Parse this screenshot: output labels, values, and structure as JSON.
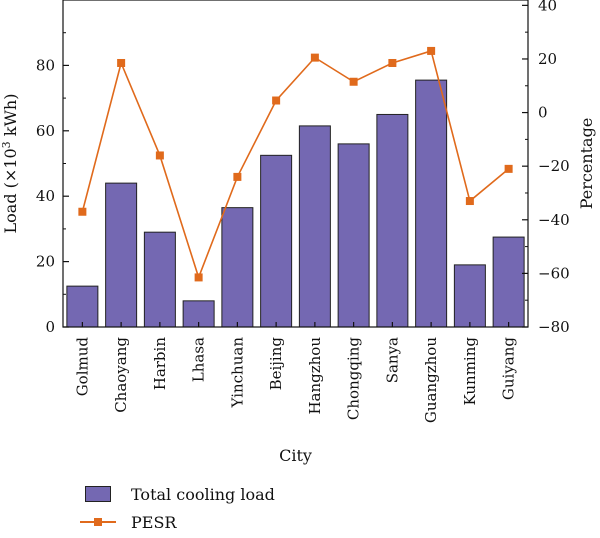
{
  "chart_data": {
    "type": "bar",
    "categories": [
      "Golmud",
      "Chaoyang",
      "Harbin",
      "Lhasa",
      "Yinchuan",
      "Beijing",
      "Hangzhou",
      "Chongqing",
      "Sanya",
      "Guangzhou",
      "Kunming",
      "Guiyang"
    ],
    "series": [
      {
        "name": "Total cooling load",
        "type": "bar",
        "axis": "left",
        "values": [
          12.5,
          44,
          29,
          8,
          36.5,
          52.5,
          61.5,
          56,
          65,
          75.5,
          19,
          27.5
        ]
      },
      {
        "name": "PESR",
        "type": "line",
        "axis": "right",
        "values": [
          -37,
          18.5,
          -16,
          -61.5,
          -24,
          4.5,
          20.5,
          11.5,
          18.5,
          23,
          -33,
          -21
        ]
      }
    ],
    "xlabel": "City",
    "ylabel": "Load (×10³ kWh)",
    "ylabel_right": "Percentage",
    "ylim": [
      0,
      100
    ],
    "ylim_right": [
      -80,
      42
    ],
    "yticks": [
      0,
      20,
      40,
      60,
      80
    ],
    "yticks_right": [
      -80,
      -60,
      -40,
      -20,
      0,
      20,
      40
    ],
    "grid": false,
    "legend_position": "bottom-left",
    "colors": {
      "bar": "#7468b2",
      "line": "#e06a1c",
      "axis": "#111111"
    }
  }
}
